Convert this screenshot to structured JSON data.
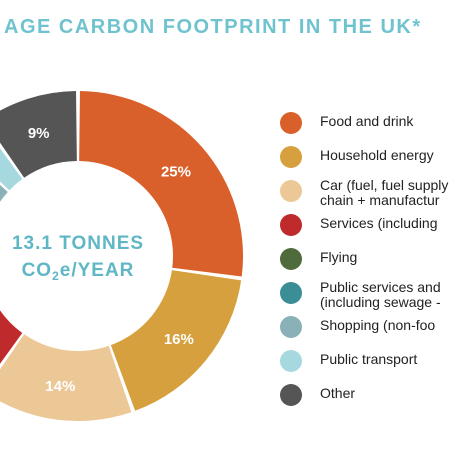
{
  "title": "AGE CARBON FOOTPRINT IN THE UK*",
  "center_label": {
    "line1": "13.1 TONNES",
    "line2": "CO",
    "line2_sub": "2",
    "line2_rest": "e/YEAR"
  },
  "colors": {
    "title": "#6fc3cf",
    "center_text": "#5fb7c5",
    "slice_label": "#ffffff"
  },
  "chart_data": {
    "type": "pie",
    "title": "AGE CARBON FOOTPRINT IN THE UK*",
    "donut": true,
    "categories": [
      "Food and drink",
      "Household energy",
      "Car (fuel, fuel supply chain + manufacture)",
      "Services (including",
      "Flying",
      "Public services and (including sewage",
      "Shopping (non-food",
      "Public transport",
      "Other"
    ],
    "values": [
      25,
      16,
      14,
      8,
      6,
      6,
      5,
      3,
      9
    ],
    "value_labels": [
      "25%",
      "16%",
      "14%",
      "%",
      "",
      "",
      "",
      "",
      "9%"
    ],
    "slice_colors": [
      "#d9602a",
      "#d6a03f",
      "#ecc896",
      "#bf2a2c",
      "#4f6a3b",
      "#3c8e96",
      "#8ab1b8",
      "#a6d8df",
      "#555555"
    ],
    "legend_position": "right"
  },
  "legend": [
    {
      "label": "Food and drink",
      "color": "#d9602a"
    },
    {
      "label": "Household energy",
      "color": "#d6a03f"
    },
    {
      "label": "Car (fuel, fuel supply\nchain + manufactur",
      "color": "#ecc896"
    },
    {
      "label": "Services (including",
      "color": "#bf2a2c"
    },
    {
      "label": "Flying",
      "color": "#4f6a3b"
    },
    {
      "label": "Public services and\n(including sewage -",
      "color": "#3c8e96"
    },
    {
      "label": "Shopping (non-foo",
      "color": "#8ab1b8"
    },
    {
      "label": "Public transport",
      "color": "#a6d8df"
    },
    {
      "label": "Other",
      "color": "#555555"
    }
  ]
}
